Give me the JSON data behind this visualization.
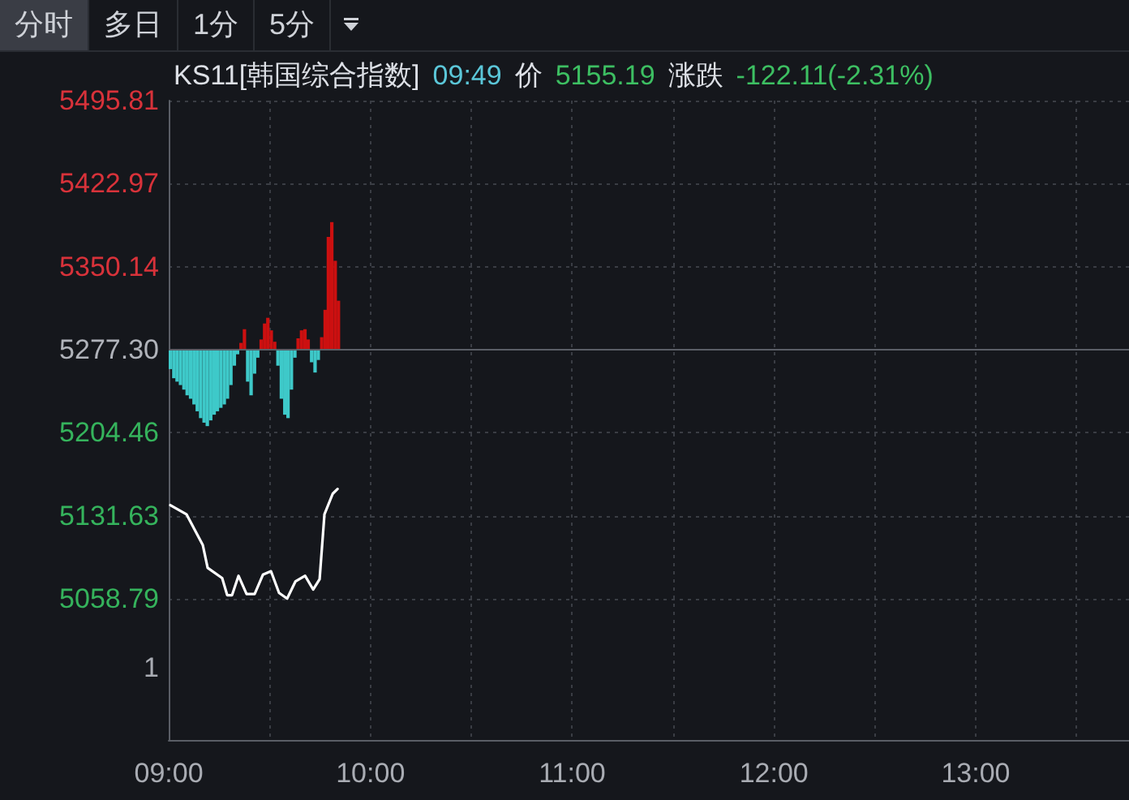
{
  "chart_data": {
    "type": "line",
    "title": "KS11[韩国综合指数]",
    "annotations": [
      "分时",
      "多日",
      "1分",
      "5分",
      "09:49",
      "价",
      "5155.19",
      "涨跌",
      "-122.11(-2.31%)",
      "1"
    ],
    "xlim": [
      9,
      13.76
    ],
    "xticks": [
      {
        "value": 9,
        "label": "09:00"
      },
      {
        "value": 9.5,
        "label": null
      },
      {
        "value": 10,
        "label": "10:00"
      },
      {
        "value": 10.5,
        "label": null
      },
      {
        "value": 11,
        "label": "11:00"
      },
      {
        "value": 11.5,
        "label": null
      },
      {
        "value": 12,
        "label": "12:00"
      },
      {
        "value": 12.5,
        "label": null
      },
      {
        "value": 13,
        "label": "13:00"
      },
      {
        "value": 13.5,
        "label": null
      }
    ],
    "ylim": [
      4935,
      5495.81
    ],
    "yticks": [
      5058.79,
      5131.63,
      5204.46,
      {
        "value": 5277.3,
        "label": "5277.30"
      },
      5350.14,
      5422.97,
      5495.81
    ],
    "grid": true,
    "marker": "none",
    "line_style": "solid",
    "ref_lines": [
      {
        "axis": "y",
        "value": 5277.3,
        "label": null,
        "color": "#5a5e66"
      }
    ],
    "series": [
      {
        "color": "#ffffff",
        "x": [
          9.008,
          9.088,
          9.169,
          9.193,
          9.265,
          9.29,
          9.314,
          9.346,
          9.386,
          9.426,
          9.467,
          9.507,
          9.547,
          9.587,
          9.628,
          9.676,
          9.716,
          9.748,
          9.772,
          9.813,
          9.837
        ],
        "values": [
          5141,
          5133,
          5106,
          5086,
          5077,
          5062,
          5062,
          5079,
          5063,
          5063,
          5080,
          5083,
          5064,
          5059,
          5074,
          5079,
          5067,
          5076,
          5133,
          5151,
          5155.19
        ]
      },
      {
        "type": "bar",
        "x": [
          9,
          9.017,
          9.033,
          9.05,
          9.067,
          9.083,
          9.1,
          9.117,
          9.133,
          9.15,
          9.167,
          9.183,
          9.2,
          9.217,
          9.233,
          9.25,
          9.267,
          9.283,
          9.3,
          9.317,
          9.333,
          9.35,
          9.367,
          9.383,
          9.4,
          9.417,
          9.433,
          9.45,
          9.467,
          9.483,
          9.5,
          9.517,
          9.533,
          9.55,
          9.567,
          9.583,
          9.6,
          9.617,
          9.633,
          9.65,
          9.667,
          9.683,
          9.7,
          9.717,
          9.733,
          9.75,
          9.767,
          9.783,
          9.8,
          9.817,
          9.833
        ],
        "base": [
          5277.3,
          5277.3,
          5277.3,
          5277.3,
          5277.3,
          5277.3,
          5277.3,
          5277.3,
          5277.3,
          5277.3,
          5277.3,
          5277.3,
          5277.3,
          5277.3,
          5277.3,
          5277.3,
          5277.3,
          5277.3,
          5277.3,
          5277.3,
          5277.3,
          5277.3,
          5277.3,
          5277.3,
          5277.3,
          5277.3,
          5277.3,
          5277.3,
          5277.3,
          5277.3,
          5277.3,
          5277.3,
          5277.3,
          5277.3,
          5277.3,
          5277.3,
          5277.3,
          5277.3,
          5277.3,
          5277.3,
          5277.3,
          5277.3,
          5277.3,
          5277.3,
          5277.3,
          5277.3,
          5277.3,
          5277.3,
          5277.3,
          5277.3,
          5277.3
        ],
        "values": [
          -17,
          -25,
          -28,
          -31,
          -35,
          -40,
          -43,
          -48,
          -54,
          -60,
          -64,
          -67,
          -62,
          -57,
          -54,
          -51,
          -48,
          -43,
          -31,
          -14,
          -4,
          6,
          18,
          -28,
          -40,
          -21,
          -7,
          9,
          23,
          28,
          17,
          7,
          -14,
          -43,
          -57,
          -60,
          -35,
          -7,
          10,
          17,
          18,
          9,
          -11,
          -20,
          -9,
          11,
          35,
          99,
          112,
          78,
          43
        ],
        "colors": [
          "#3ec9c9",
          "#3ec9c9",
          "#3ec9c9",
          "#3ec9c9",
          "#3ec9c9",
          "#3ec9c9",
          "#3ec9c9",
          "#3ec9c9",
          "#3ec9c9",
          "#3ec9c9",
          "#3ec9c9",
          "#3ec9c9",
          "#3ec9c9",
          "#3ec9c9",
          "#3ec9c9",
          "#3ec9c9",
          "#3ec9c9",
          "#3ec9c9",
          "#3ec9c9",
          "#3ec9c9",
          "#3ec9c9",
          "#cc1010",
          "#cc1010",
          "#3ec9c9",
          "#3ec9c9",
          "#3ec9c9",
          "#3ec9c9",
          "#cc1010",
          "#cc1010",
          "#cc1010",
          "#cc1010",
          "#cc1010",
          "#3ec9c9",
          "#3ec9c9",
          "#3ec9c9",
          "#3ec9c9",
          "#3ec9c9",
          "#3ec9c9",
          "#cc1010",
          "#cc1010",
          "#cc1010",
          "#cc1010",
          "#3ec9c9",
          "#3ec9c9",
          "#3ec9c9",
          "#cc1010",
          "#cc1010",
          "#cc1010",
          "#cc1010",
          "#cc1010",
          "#cc1010"
        ]
      }
    ]
  }
}
